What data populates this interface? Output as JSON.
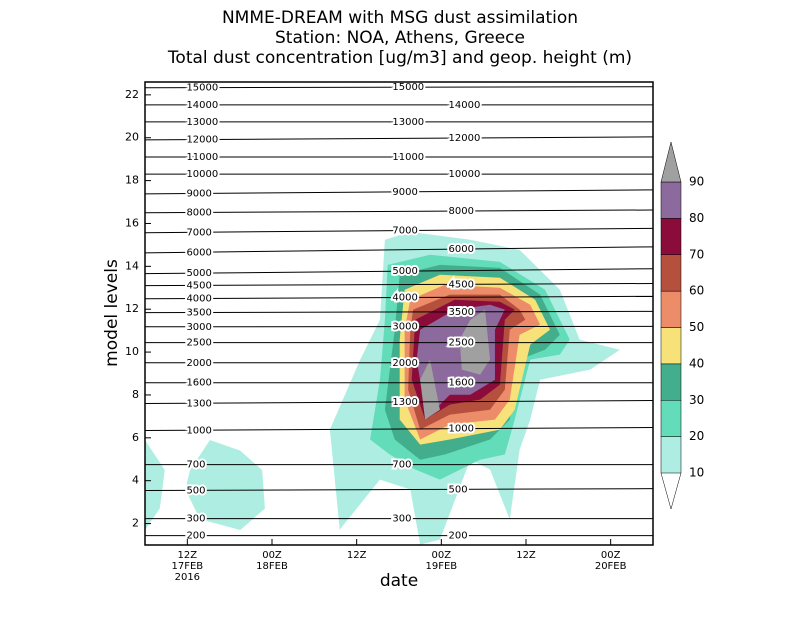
{
  "chart_data": {
    "type": "contour",
    "title": [
      "NMME-DREAM with MSG dust assimilation",
      "Station: NOA, Athens, Greece",
      "Total dust concentration [ug/m3] and geop. height (m)"
    ],
    "xlabel": "date",
    "ylabel": "model levels",
    "xlim": [
      6,
      78
    ],
    "ylim": [
      1,
      22.6
    ],
    "xticks": [
      {
        "value": 12,
        "label": [
          "12Z",
          "17FEB",
          "2016"
        ]
      },
      {
        "value": 24,
        "label": [
          "00Z",
          "18FEB"
        ]
      },
      {
        "value": 36,
        "label": [
          "12Z"
        ]
      },
      {
        "value": 48,
        "label": [
          "00Z",
          "19FEB"
        ]
      },
      {
        "value": 60,
        "label": [
          "12Z"
        ]
      },
      {
        "value": 72,
        "label": [
          "00Z",
          "20FEB"
        ]
      }
    ],
    "yticks": [
      2,
      4,
      6,
      8,
      10,
      12,
      14,
      16,
      18,
      20,
      22
    ],
    "colorbar": {
      "levels": [
        10,
        20,
        30,
        40,
        50,
        60,
        70,
        80,
        90
      ],
      "colors": [
        "#aeeee2",
        "#63dcb9",
        "#42ae8c",
        "#f7e27a",
        "#ec8c68",
        "#b5503f",
        "#8b0b3b",
        "#8c6a9e",
        "#a0a0a0"
      ]
    },
    "height_contours": [
      {
        "value": 15000,
        "y": [
          22.33,
          22.38
        ]
      },
      {
        "value": 14000,
        "y": [
          21.53,
          21.53
        ]
      },
      {
        "value": 13000,
        "y": [
          20.74,
          20.74
        ]
      },
      {
        "value": 12000,
        "y": [
          19.9,
          20.04
        ]
      },
      {
        "value": 11000,
        "y": [
          19.1,
          19.1
        ]
      },
      {
        "value": 10000,
        "y": [
          18.3,
          18.3
        ]
      },
      {
        "value": 9000,
        "y": [
          17.38,
          17.57
        ]
      },
      {
        "value": 8000,
        "y": [
          16.5,
          16.63
        ]
      },
      {
        "value": 7000,
        "y": [
          15.57,
          15.77
        ]
      },
      {
        "value": 6000,
        "y": [
          14.63,
          14.91
        ]
      },
      {
        "value": 5000,
        "y": [
          13.66,
          13.89
        ]
      },
      {
        "value": 4500,
        "y": [
          13.1,
          13.2
        ]
      },
      {
        "value": 4000,
        "y": [
          12.49,
          12.6
        ]
      },
      {
        "value": 3500,
        "y": [
          11.84,
          11.9
        ]
      },
      {
        "value": 3000,
        "y": [
          11.18,
          11.2
        ]
      },
      {
        "value": 2500,
        "y": [
          10.44,
          10.44
        ]
      },
      {
        "value": 2000,
        "y": [
          9.5,
          9.5
        ]
      },
      {
        "value": 1600,
        "y": [
          8.57,
          8.57
        ]
      },
      {
        "value": 1300,
        "y": [
          7.6,
          7.74
        ]
      },
      {
        "value": 1000,
        "y": [
          6.34,
          6.48
        ]
      },
      {
        "value": 700,
        "y": [
          4.75,
          4.75
        ]
      },
      {
        "value": 500,
        "y": [
          3.54,
          3.63
        ]
      },
      {
        "value": 300,
        "y": [
          2.23,
          2.23
        ]
      },
      {
        "value": 200,
        "y": [
          1.44,
          1.44
        ]
      }
    ],
    "dust_contours": [
      {
        "level": 10,
        "points": [
          [
            6,
            5.9
          ],
          [
            8.8,
            4.5
          ],
          [
            8.1,
            2.7
          ],
          [
            6,
            1.7
          ]
        ]
      },
      {
        "level": 10,
        "points": [
          [
            12.4,
            4.5
          ],
          [
            15.2,
            5.9
          ],
          [
            19.5,
            5.4
          ],
          [
            22.6,
            4.5
          ],
          [
            23,
            2.7
          ],
          [
            19.5,
            1.7
          ],
          [
            13.8,
            2.2
          ],
          [
            11.7,
            3.6
          ]
        ]
      },
      {
        "level": 10,
        "points": [
          [
            40,
            15.24
          ],
          [
            43.6,
            15.61
          ],
          [
            52.1,
            15.24
          ],
          [
            59.1,
            14.77
          ],
          [
            64.8,
            12.91
          ],
          [
            67.6,
            10.58
          ],
          [
            73.3,
            10.11
          ],
          [
            69.1,
            9.18
          ],
          [
            62,
            8.71
          ],
          [
            60.6,
            6.85
          ],
          [
            59.1,
            5.45
          ],
          [
            57.7,
            2.19
          ],
          [
            54.9,
            4.52
          ],
          [
            52.1,
            4.98
          ],
          [
            47.8,
            1.25
          ],
          [
            45,
            1.02
          ],
          [
            43.6,
            3.59
          ],
          [
            39.3,
            4.05
          ],
          [
            33.6,
            1.72
          ],
          [
            32.2,
            6.38
          ],
          [
            36.5,
            9.65
          ],
          [
            39.3,
            11.51
          ]
        ]
      },
      {
        "level": 20,
        "points": [
          [
            40.4,
            14.07
          ],
          [
            46.4,
            14.54
          ],
          [
            56.3,
            14.21
          ],
          [
            62.7,
            12.91
          ],
          [
            66.2,
            10.58
          ],
          [
            64.8,
            9.88
          ],
          [
            60.6,
            9.65
          ],
          [
            58.4,
            6.85
          ],
          [
            57,
            5.22
          ],
          [
            53.5,
            4.98
          ],
          [
            47.8,
            4.05
          ],
          [
            44.3,
            4.52
          ],
          [
            40.7,
            5.22
          ],
          [
            37.9,
            5.92
          ],
          [
            39.3,
            8.71
          ],
          [
            40,
            11.51
          ]
        ]
      },
      {
        "level": 30,
        "points": [
          [
            42.1,
            13.61
          ],
          [
            47.8,
            14.07
          ],
          [
            56.3,
            13.93
          ],
          [
            62,
            12.68
          ],
          [
            64.8,
            10.81
          ],
          [
            62.7,
            10.11
          ],
          [
            59.1,
            9.65
          ],
          [
            57.7,
            6.85
          ],
          [
            54.9,
            5.92
          ],
          [
            48.5,
            5.22
          ],
          [
            45,
            4.98
          ],
          [
            41.4,
            5.92
          ],
          [
            40,
            7.31
          ],
          [
            41.4,
            11.04
          ]
        ]
      },
      {
        "level": 40,
        "points": [
          [
            42.8,
            12.91
          ],
          [
            47.8,
            13.61
          ],
          [
            56.3,
            13.47
          ],
          [
            61.3,
            12.44
          ],
          [
            63.4,
            11.04
          ],
          [
            60.6,
            10.35
          ],
          [
            58.4,
            7.31
          ],
          [
            56.3,
            6.38
          ],
          [
            49.2,
            5.92
          ],
          [
            45,
            5.68
          ],
          [
            42.1,
            6.85
          ],
          [
            42.1,
            10.58
          ]
        ]
      },
      {
        "level": 50,
        "points": [
          [
            43.6,
            12.44
          ],
          [
            48.5,
            13.14
          ],
          [
            56.3,
            13
          ],
          [
            60.6,
            12.21
          ],
          [
            62,
            11.28
          ],
          [
            59.1,
            10.81
          ],
          [
            57.7,
            7.78
          ],
          [
            55.6,
            6.85
          ],
          [
            49.2,
            6.62
          ],
          [
            45,
            5.92
          ],
          [
            42.8,
            7.78
          ],
          [
            42.8,
            11.04
          ]
        ]
      },
      {
        "level": 60,
        "points": [
          [
            44,
            11.98
          ],
          [
            49.2,
            12.68
          ],
          [
            56.3,
            12.68
          ],
          [
            59.1,
            11.98
          ],
          [
            59.9,
            11.51
          ],
          [
            57.7,
            11.04
          ],
          [
            57,
            8.25
          ],
          [
            54.9,
            7.31
          ],
          [
            49.2,
            7.08
          ],
          [
            45,
            6.38
          ],
          [
            43.3,
            8.25
          ],
          [
            43.6,
            11.04
          ]
        ]
      },
      {
        "level": 70,
        "points": [
          [
            44.3,
            11.51
          ],
          [
            49.9,
            12.44
          ],
          [
            56.3,
            12.35
          ],
          [
            58.4,
            11.98
          ],
          [
            57,
            11.51
          ],
          [
            56.3,
            8.48
          ],
          [
            53.5,
            7.78
          ],
          [
            49.2,
            7.55
          ],
          [
            45.7,
            6.85
          ],
          [
            43.8,
            8.71
          ]
        ]
      },
      {
        "level": 80,
        "points": [
          [
            45,
            11.04
          ],
          [
            49.9,
            11.98
          ],
          [
            54.9,
            12.21
          ],
          [
            57,
            11.98
          ],
          [
            55.6,
            11.04
          ],
          [
            55.6,
            8.71
          ],
          [
            52.1,
            8.01
          ],
          [
            49.2,
            8.01
          ],
          [
            47.1,
            7.31
          ],
          [
            45.7,
            7.31
          ],
          [
            44.5,
            9.65
          ]
        ]
      },
      {
        "level": 90,
        "points": [
          [
            46.4,
            9.65
          ],
          [
            47.8,
            7.31
          ],
          [
            45.7,
            6.85
          ],
          [
            45,
            8.71
          ]
        ]
      },
      {
        "level": 90,
        "points": [
          [
            52.1,
            11.51
          ],
          [
            54.2,
            11.98
          ],
          [
            54.9,
            9.65
          ],
          [
            53.5,
            8.95
          ],
          [
            50.9,
            9.18
          ],
          [
            50.6,
            10.58
          ]
        ]
      }
    ]
  }
}
